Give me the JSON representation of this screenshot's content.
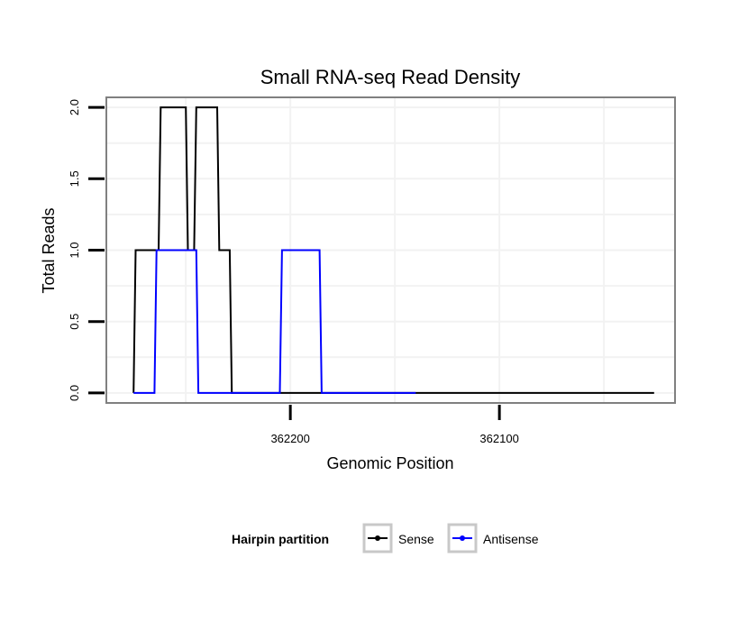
{
  "chart_data": {
    "type": "line",
    "step": true,
    "title": "Small RNA-seq Read Density",
    "xlabel": "Genomic Position",
    "ylabel": "Total Reads",
    "x_reversed": true,
    "xlim": [
      362288,
      362016
    ],
    "ylim": [
      -0.07,
      2.07
    ],
    "x_ticks": [
      362200,
      362100
    ],
    "x_tick_labels": [
      "362200",
      "362100"
    ],
    "y_ticks": [
      0,
      0.5,
      1,
      1.5,
      2
    ],
    "y_tick_labels": [
      "0.0",
      "0.5",
      "1.0",
      "1.5",
      "2.0"
    ],
    "grid": true,
    "legend": {
      "title": "Hairpin partition",
      "position": "bottom",
      "entries": [
        {
          "name": "Sense",
          "color": "#000000"
        },
        {
          "name": "Antisense",
          "color": "#0000ff"
        }
      ]
    },
    "series": [
      {
        "name": "Sense",
        "color": "#000000",
        "x": [
          362275,
          362274,
          362263,
          362262,
          362250,
          362249,
          362246,
          362245,
          362235,
          362234,
          362229,
          362228,
          362026
        ],
        "y": [
          0,
          1,
          1,
          2,
          2,
          1,
          1,
          2,
          2,
          1,
          1,
          0,
          0
        ]
      },
      {
        "name": "Antisense",
        "color": "#0000ff",
        "x": [
          362275,
          362265,
          362264,
          362245,
          362244,
          362205,
          362204,
          362186,
          362185,
          362140
        ],
        "y": [
          0,
          0,
          1,
          1,
          0,
          0,
          1,
          1,
          0,
          0
        ]
      }
    ]
  }
}
